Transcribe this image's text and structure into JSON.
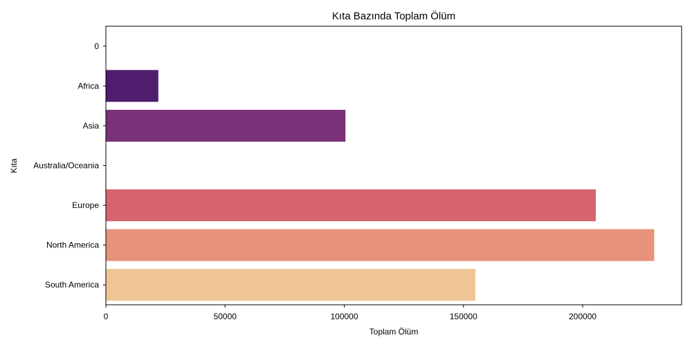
{
  "chart_data": {
    "type": "bar",
    "orientation": "horizontal",
    "title": "Kıta Bazında Toplam Ölüm",
    "xlabel": "Toplam Ölüm",
    "ylabel": "Kıta",
    "categories": [
      "0",
      "Africa",
      "Asia",
      "Australia/Oceania",
      "Europe",
      "North America",
      "South America"
    ],
    "values": [
      0,
      22000,
      100500,
      0,
      205500,
      230000,
      155000
    ],
    "colors": [
      "#2a115c",
      "#4e1d6d",
      "#7a3177",
      "#a8437a",
      "#d5646f",
      "#e6937a",
      "#efc595"
    ],
    "xlim": [
      0,
      241500
    ],
    "xticks": [
      0,
      50000,
      100000,
      150000,
      200000
    ],
    "xtick_labels": [
      "0",
      "50000",
      "100000",
      "150000",
      "200000"
    ],
    "grid": false,
    "legend": null
  }
}
